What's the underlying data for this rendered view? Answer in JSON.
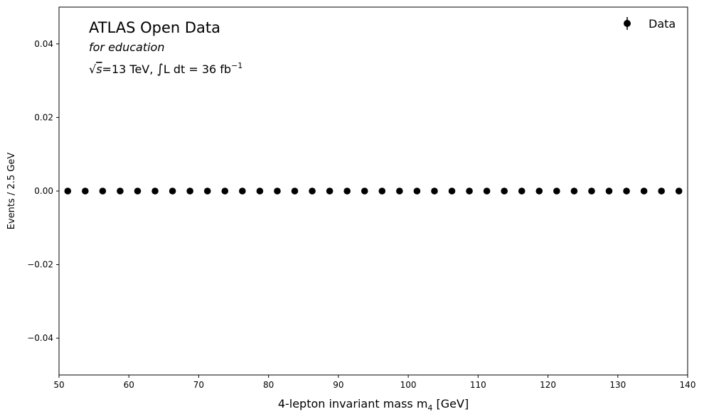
{
  "chart_data": {
    "type": "scatter",
    "title": "ATLAS Open Data",
    "subtitle": "for education",
    "energy_text": "=13 TeV, ",
    "lumi_text": "L dt = 36 fb",
    "lumi_exponent": "−1",
    "sqrt_symbol": "√",
    "sqrt_var": "s",
    "integral_symbol": "∫",
    "xlabel": "4-lepton invariant mass m",
    "xlabel_sub": "4",
    "xlabel_unit": " [GeV]",
    "ylabel": "Events / 2.5 GeV",
    "xlim": [
      50,
      140
    ],
    "ylim": [
      -0.05,
      0.05
    ],
    "xticks": [
      50,
      60,
      70,
      80,
      90,
      100,
      110,
      120,
      130,
      140
    ],
    "yticks": [
      -0.04,
      -0.02,
      0.0,
      0.02,
      0.04
    ],
    "ytick_labels": [
      "−0.04",
      "−0.02",
      "0.00",
      "0.02",
      "0.04"
    ],
    "legend": {
      "label": "Data",
      "position": "top-right"
    },
    "grid": false,
    "marker_color": "#000000",
    "series": [
      {
        "name": "Data",
        "x": [
          51.25,
          53.75,
          56.25,
          58.75,
          61.25,
          63.75,
          66.25,
          68.75,
          71.25,
          73.75,
          76.25,
          78.75,
          81.25,
          83.75,
          86.25,
          88.75,
          91.25,
          93.75,
          96.25,
          98.75,
          101.25,
          103.75,
          106.25,
          108.75,
          111.25,
          113.75,
          116.25,
          118.75,
          121.25,
          123.75,
          126.25,
          128.75,
          131.25,
          133.75,
          136.25,
          138.75
        ],
        "y": [
          0,
          0,
          0,
          0,
          0,
          0,
          0,
          0,
          0,
          0,
          0,
          0,
          0,
          0,
          0,
          0,
          0,
          0,
          0,
          0,
          0,
          0,
          0,
          0,
          0,
          0,
          0,
          0,
          0,
          0,
          0,
          0,
          0,
          0,
          0,
          0
        ]
      }
    ]
  }
}
